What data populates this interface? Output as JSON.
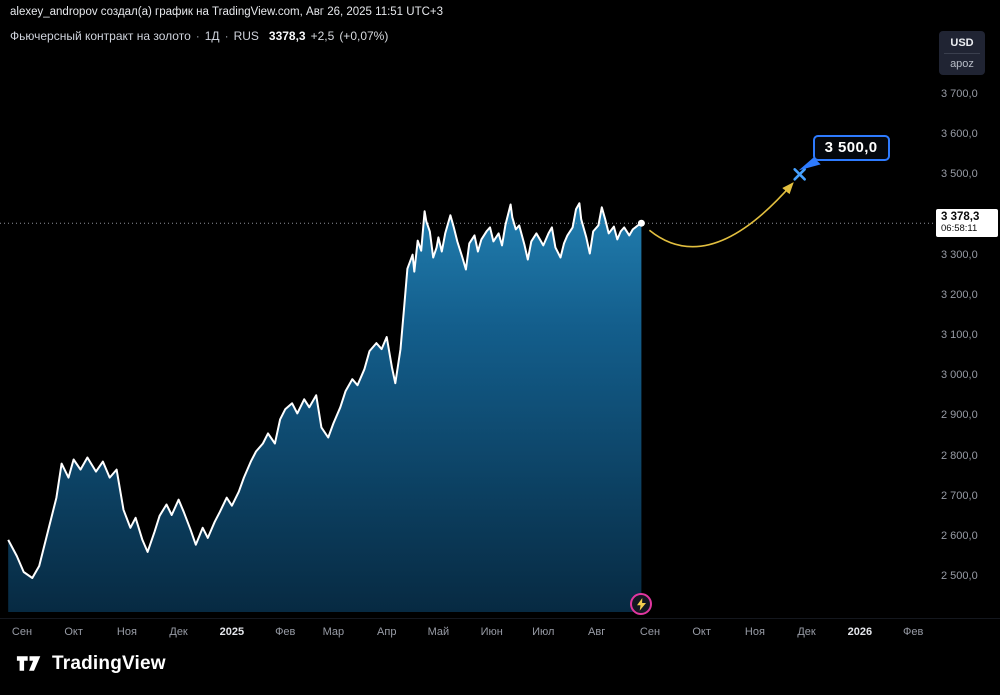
{
  "attribution": "alexey_andropov создал(а) график на TradingView.com, Авг 26, 2025 11:51 UTC+3",
  "header": {
    "title": "Фьючерсный контракт на золото",
    "sep": "·",
    "interval": "1Д",
    "exchange": "RUS",
    "last_price": "3378,3",
    "change": "+2,5",
    "change_pct": "(+0,07%)"
  },
  "unit_selector": {
    "currency": "USD",
    "unit": "apoz"
  },
  "price_scale": {
    "ticks": [
      {
        "label": "3 700,0",
        "value": 3700
      },
      {
        "label": "3 600,0",
        "value": 3600
      },
      {
        "label": "3 500,0",
        "value": 3500
      },
      {
        "label": "3 400,0",
        "value": 3400
      },
      {
        "label": "3 300,0",
        "value": 3300
      },
      {
        "label": "3 200,0",
        "value": 3200
      },
      {
        "label": "3 100,0",
        "value": 3100
      },
      {
        "label": "3 000,0",
        "value": 3000
      },
      {
        "label": "2 900,0",
        "value": 2900
      },
      {
        "label": "2 800,0",
        "value": 2800
      },
      {
        "label": "2 700,0",
        "value": 2700
      },
      {
        "label": "2 600,0",
        "value": 2600
      },
      {
        "label": "2 500,0",
        "value": 2500
      }
    ],
    "last_label": {
      "price": "3 378,3",
      "countdown": "06:58:11"
    }
  },
  "time_scale": {
    "labels": [
      {
        "label": "Сен",
        "d": 0
      },
      {
        "label": "Окт",
        "d": 30
      },
      {
        "label": "Ноя",
        "d": 61
      },
      {
        "label": "Дек",
        "d": 91
      },
      {
        "label": "2025",
        "d": 122,
        "year": true
      },
      {
        "label": "Фев",
        "d": 153
      },
      {
        "label": "Мар",
        "d": 181
      },
      {
        "label": "Апр",
        "d": 212
      },
      {
        "label": "Май",
        "d": 242
      },
      {
        "label": "Июн",
        "d": 273
      },
      {
        "label": "Июл",
        "d": 303
      },
      {
        "label": "Авг",
        "d": 334
      },
      {
        "label": "Сен",
        "d": 365
      },
      {
        "label": "Окт",
        "d": 395
      },
      {
        "label": "Ноя",
        "d": 426
      },
      {
        "label": "Дек",
        "d": 456
      },
      {
        "label": "2026",
        "d": 487,
        "year": true
      },
      {
        "label": "Фев",
        "d": 518
      }
    ]
  },
  "logo": {
    "text": "TradingView"
  },
  "colors": {
    "accent_blue": "#2E7BFF",
    "marker_blue": "#46A1FF",
    "arrow_yellow": "#E2BF3F",
    "line": "#FFFFFF",
    "fill_top": "#2F9BD0",
    "fill_mid": "#135E8C",
    "fill_bottom": "#072A42",
    "dotted_line": "#8F939C",
    "badge_ring": "#E0369F",
    "bolt_yellow": "#F3CF4E"
  },
  "chart_data": {
    "type": "area",
    "title": "Фьючерсный контракт на золото, 1Д, RUS",
    "ylabel": "USD / apoz",
    "ylim": [
      2500,
      3700
    ],
    "x_unit": "days since 2024-09-01",
    "grid": false,
    "last": 3378.3,
    "change": 2.5,
    "change_pct": 0.07,
    "projection": {
      "d": 452,
      "price": 3500,
      "label": "3 500,0"
    },
    "points": [
      [
        -8,
        2590
      ],
      [
        -3,
        2550
      ],
      [
        1,
        2510
      ],
      [
        6,
        2495
      ],
      [
        10,
        2525
      ],
      [
        15,
        2610
      ],
      [
        20,
        2695
      ],
      [
        23,
        2780
      ],
      [
        27,
        2745
      ],
      [
        30,
        2790
      ],
      [
        34,
        2765
      ],
      [
        38,
        2795
      ],
      [
        43,
        2760
      ],
      [
        47,
        2785
      ],
      [
        51,
        2745
      ],
      [
        55,
        2765
      ],
      [
        59,
        2665
      ],
      [
        63,
        2620
      ],
      [
        66,
        2645
      ],
      [
        70,
        2590
      ],
      [
        73,
        2560
      ],
      [
        77,
        2610
      ],
      [
        80,
        2650
      ],
      [
        84,
        2678
      ],
      [
        87,
        2652
      ],
      [
        91,
        2690
      ],
      [
        94,
        2660
      ],
      [
        98,
        2615
      ],
      [
        101,
        2578
      ],
      [
        105,
        2620
      ],
      [
        108,
        2595
      ],
      [
        112,
        2635
      ],
      [
        115,
        2660
      ],
      [
        119,
        2695
      ],
      [
        122,
        2675
      ],
      [
        126,
        2710
      ],
      [
        129,
        2745
      ],
      [
        133,
        2785
      ],
      [
        136,
        2810
      ],
      [
        140,
        2830
      ],
      [
        143,
        2855
      ],
      [
        147,
        2830
      ],
      [
        150,
        2890
      ],
      [
        153,
        2915
      ],
      [
        157,
        2930
      ],
      [
        160,
        2905
      ],
      [
        164,
        2940
      ],
      [
        167,
        2920
      ],
      [
        171,
        2950
      ],
      [
        174,
        2870
      ],
      [
        178,
        2845
      ],
      [
        181,
        2880
      ],
      [
        185,
        2920
      ],
      [
        188,
        2960
      ],
      [
        192,
        2990
      ],
      [
        195,
        2975
      ],
      [
        199,
        3015
      ],
      [
        202,
        3060
      ],
      [
        206,
        3080
      ],
      [
        209,
        3065
      ],
      [
        212,
        3095
      ],
      [
        215,
        3020
      ],
      [
        217,
        2980
      ],
      [
        220,
        3065
      ],
      [
        222,
        3165
      ],
      [
        224,
        3265
      ],
      [
        227,
        3300
      ],
      [
        228,
        3258
      ],
      [
        230,
        3335
      ],
      [
        232,
        3310
      ],
      [
        234,
        3408
      ],
      [
        235,
        3383
      ],
      [
        237,
        3358
      ],
      [
        239,
        3293
      ],
      [
        241,
        3318
      ],
      [
        242,
        3343
      ],
      [
        244,
        3308
      ],
      [
        246,
        3353
      ],
      [
        249,
        3398
      ],
      [
        251,
        3368
      ],
      [
        253,
        3333
      ],
      [
        256,
        3293
      ],
      [
        258,
        3263
      ],
      [
        260,
        3328
      ],
      [
        263,
        3348
      ],
      [
        265,
        3308
      ],
      [
        267,
        3338
      ],
      [
        270,
        3358
      ],
      [
        272,
        3368
      ],
      [
        274,
        3333
      ],
      [
        277,
        3353
      ],
      [
        279,
        3323
      ],
      [
        281,
        3375
      ],
      [
        284,
        3425
      ],
      [
        285,
        3393
      ],
      [
        287,
        3363
      ],
      [
        289,
        3373
      ],
      [
        292,
        3325
      ],
      [
        294,
        3288
      ],
      [
        296,
        3333
      ],
      [
        299,
        3353
      ],
      [
        301,
        3338
      ],
      [
        303,
        3323
      ],
      [
        306,
        3353
      ],
      [
        308,
        3368
      ],
      [
        310,
        3318
      ],
      [
        313,
        3293
      ],
      [
        315,
        3328
      ],
      [
        317,
        3348
      ],
      [
        320,
        3368
      ],
      [
        322,
        3413
      ],
      [
        324,
        3428
      ],
      [
        325,
        3388
      ],
      [
        328,
        3343
      ],
      [
        330,
        3303
      ],
      [
        332,
        3358
      ],
      [
        335,
        3373
      ],
      [
        337,
        3418
      ],
      [
        339,
        3388
      ],
      [
        341,
        3353
      ],
      [
        344,
        3370
      ],
      [
        346,
        3338
      ],
      [
        348,
        3358
      ],
      [
        350,
        3368
      ],
      [
        353,
        3348
      ],
      [
        355,
        3363
      ],
      [
        358,
        3373
      ],
      [
        360,
        3378.3
      ]
    ]
  }
}
